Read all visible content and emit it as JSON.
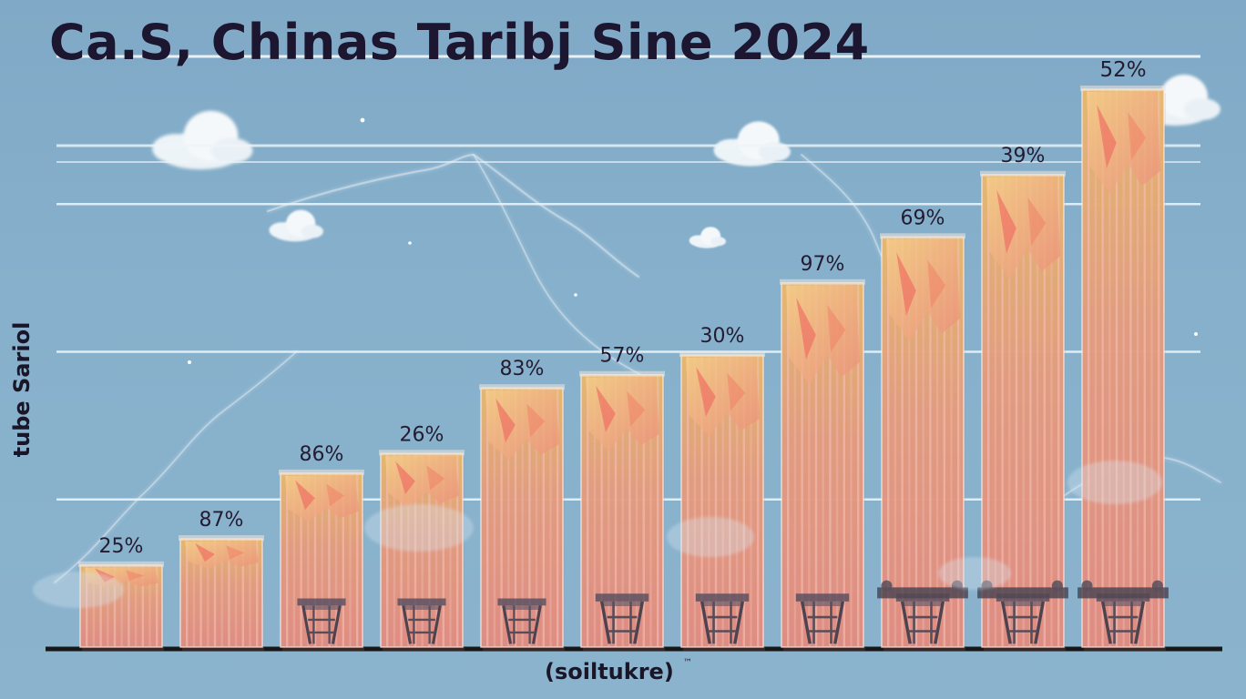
{
  "page": {
    "title": "Ca.S, Chinas Taribj Sine 2024",
    "xlabel": "(soiltukre)",
    "xlabel_sup": "™",
    "ylabel": "tube Sariol"
  },
  "chart_data": {
    "type": "bar",
    "title": "Ca.S, Chinas Taribj Sine 2024",
    "xlabel": "(soiltukre)",
    "ylabel": "tube Sariol",
    "categories": [],
    "values": [
      25,
      33,
      53,
      59,
      79,
      83,
      89,
      111,
      125,
      144,
      170
    ],
    "labels": [
      "25%",
      "87%",
      "86%",
      "26%",
      "83%",
      "57%",
      "30%",
      "97%",
      "69%",
      "39%",
      "52%"
    ],
    "ylim": [
      0,
      180
    ],
    "grid": true,
    "legend": "none"
  },
  "colors": {
    "background": "#86b0cb",
    "bar_top": "#e6b86d",
    "bar_base": "#e28b80",
    "bar_stripe": "#f3c0b6",
    "axis": "#171717",
    "grid": "#eef4f8"
  }
}
